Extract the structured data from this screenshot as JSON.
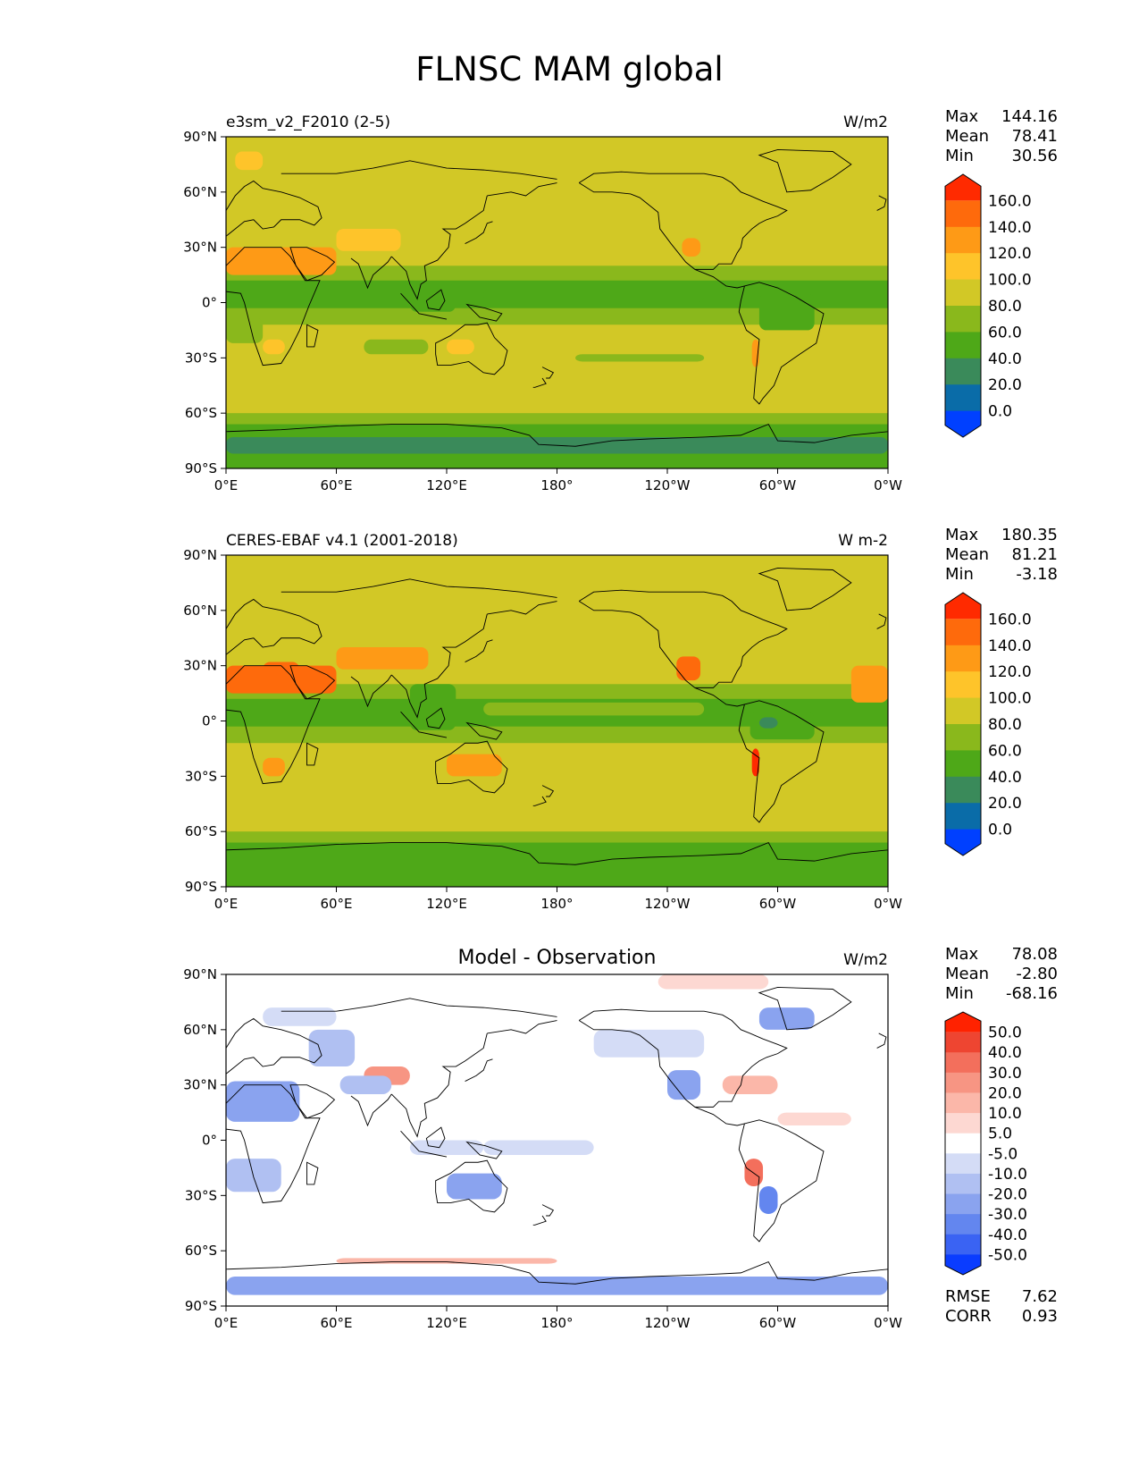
{
  "title": "FLNSC MAM global",
  "colors": {
    "sequential": [
      "#0040ff",
      "#0a6ca8",
      "#3a8a5a",
      "#4ea818",
      "#8ab81c",
      "#d2c826",
      "#fec42a",
      "#fe9a16",
      "#fe6a0c",
      "#ff2a00"
    ],
    "diverging": [
      "#0a3cff",
      "#3a63f3",
      "#6386ef",
      "#8aa3ef",
      "#b0c0f2",
      "#d4dcf6",
      "#ffffff",
      "#fdd8d2",
      "#fbb7a9",
      "#f79583",
      "#f36f5c",
      "#ee4531",
      "#ff2200"
    ],
    "land_outline": "#000000"
  },
  "panels": [
    {
      "id": "test",
      "left_title": "e3sm_v2_F2010 (2-5)",
      "center_title": "",
      "units": "W/m2",
      "stats": {
        "labels": [
          "Max",
          "Mean",
          "Min"
        ],
        "values": [
          "144.16",
          "78.41",
          "30.56"
        ]
      },
      "colorbar": {
        "labels": [
          "160.0",
          "140.0",
          "120.0",
          "100.0",
          "80.0",
          "60.0",
          "40.0",
          "20.0",
          "0.0"
        ],
        "type": "sequential"
      }
    },
    {
      "id": "reference",
      "left_title": "CERES-EBAF v4.1 (2001-2018)",
      "center_title": "",
      "units": "W m-2",
      "stats": {
        "labels": [
          "Max",
          "Mean",
          "Min"
        ],
        "values": [
          "180.35",
          "81.21",
          "-3.18"
        ]
      },
      "colorbar": {
        "labels": [
          "160.0",
          "140.0",
          "120.0",
          "100.0",
          "80.0",
          "60.0",
          "40.0",
          "20.0",
          "0.0"
        ],
        "type": "sequential"
      }
    },
    {
      "id": "difference",
      "left_title": "",
      "center_title": "Model - Observation",
      "units": "W/m2",
      "stats": {
        "labels": [
          "Max",
          "Mean",
          "Min"
        ],
        "values": [
          "78.08",
          "-2.80",
          "-68.16"
        ]
      },
      "colorbar": {
        "labels": [
          "50.0",
          "40.0",
          "30.0",
          "20.0",
          "10.0",
          "5.0",
          "-5.0",
          "-10.0",
          "-20.0",
          "-30.0",
          "-40.0",
          "-50.0"
        ],
        "type": "diverging"
      },
      "extra_stats": {
        "labels": [
          "RMSE",
          "CORR"
        ],
        "values": [
          "7.62",
          "0.93"
        ]
      }
    }
  ],
  "axes": {
    "lat_ticks": [
      "90°N",
      "60°N",
      "30°N",
      "0°",
      "30°S",
      "60°S",
      "90°S"
    ],
    "lon_ticks": [
      "0°E",
      "60°E",
      "120°E",
      "180°",
      "120°W",
      "60°W",
      "0°W"
    ]
  }
}
